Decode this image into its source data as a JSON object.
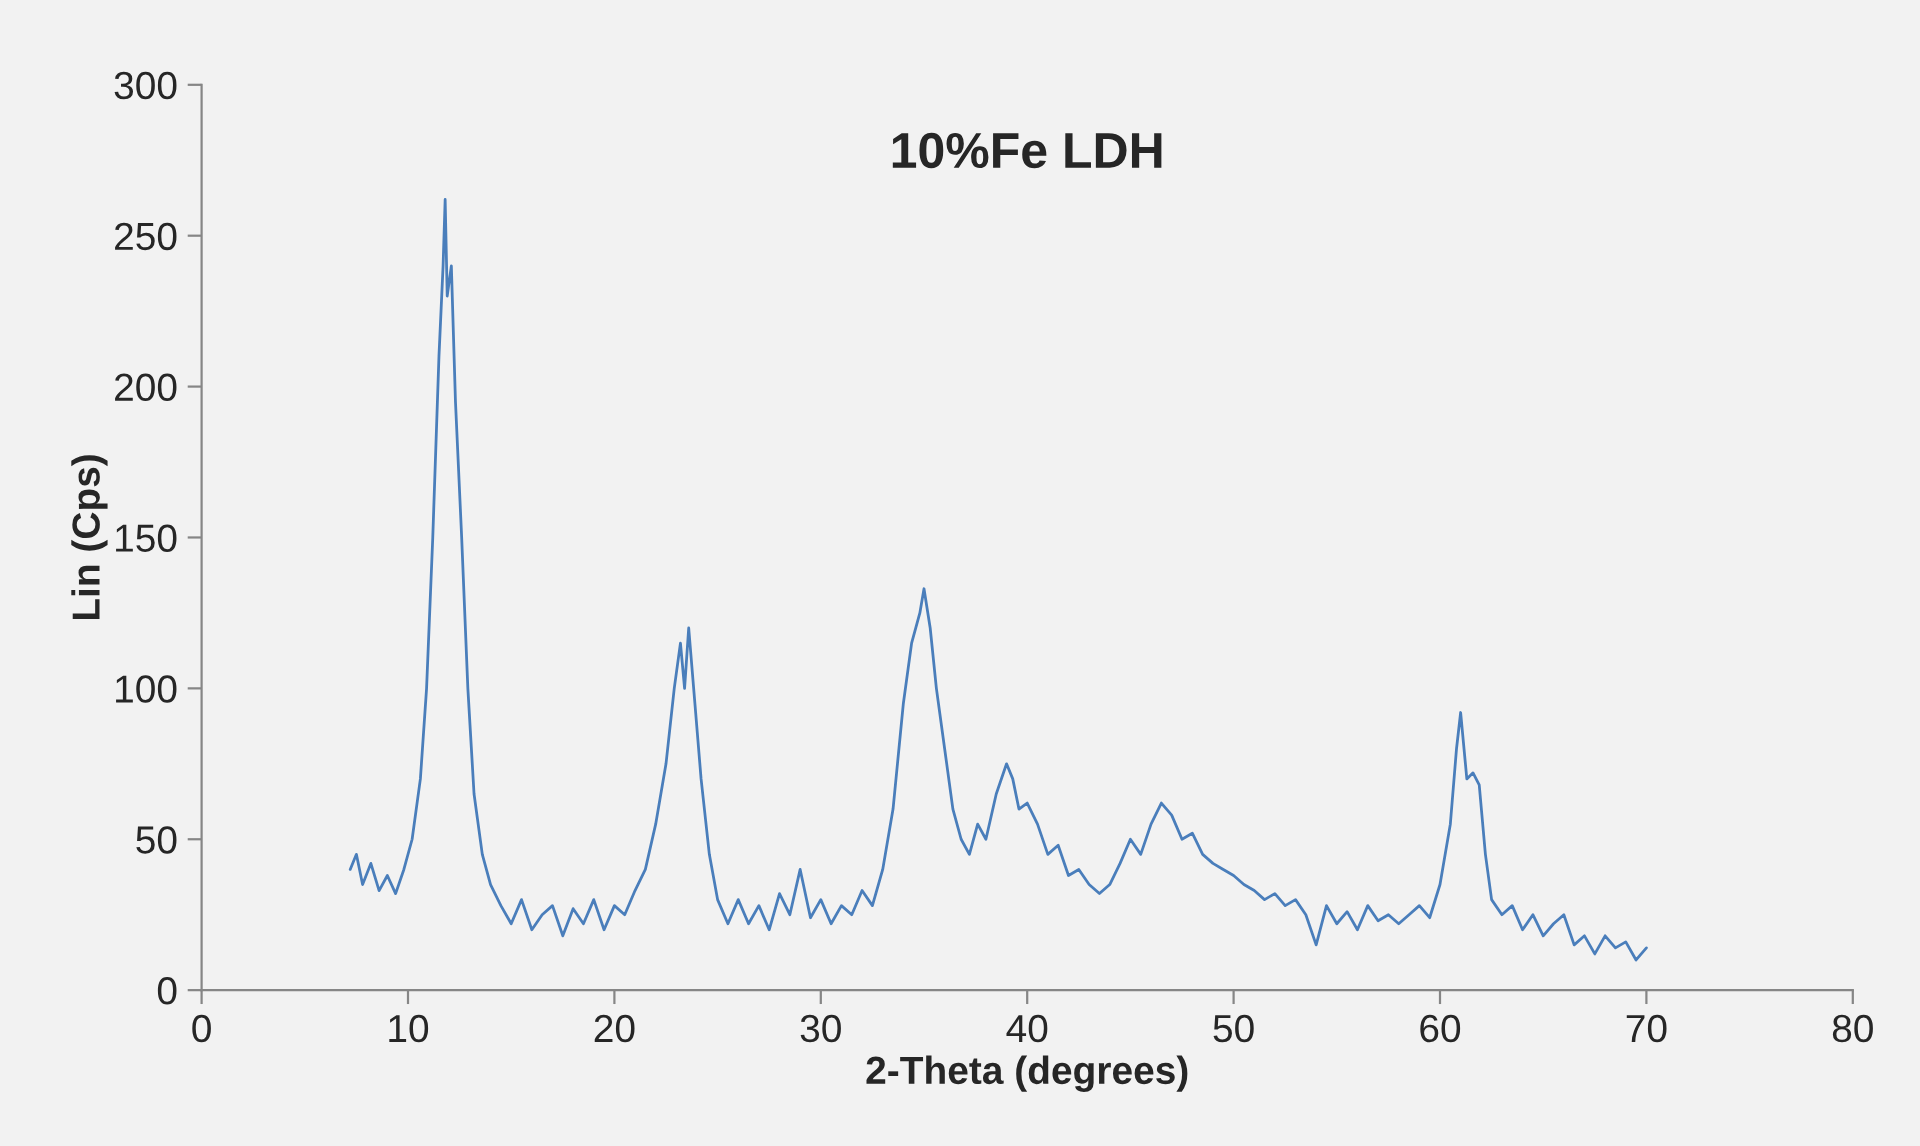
{
  "chart_data": {
    "type": "line",
    "title": "10%Fe LDH",
    "xlabel": "2-Theta (degrees)",
    "ylabel": "Lin (Cps)",
    "xlim": [
      0,
      80
    ],
    "xticks": [
      0,
      10,
      20,
      30,
      40,
      50,
      60,
      70,
      80
    ],
    "ylim": [
      0,
      300
    ],
    "yticks": [
      0,
      50,
      100,
      150,
      200,
      250,
      300
    ],
    "grid": false,
    "marker": "none",
    "line_style": "solid",
    "series": [
      {
        "color": "#4a7ebb",
        "x": [
          7.2,
          7.5,
          7.8,
          8.2,
          8.6,
          9.0,
          9.4,
          9.8,
          10.2,
          10.6,
          10.9,
          11.2,
          11.5,
          11.7,
          11.8,
          11.9,
          12.1,
          12.3,
          12.6,
          12.9,
          13.2,
          13.6,
          14.0,
          14.5,
          15.0,
          15.5,
          16.0,
          16.5,
          17.0,
          17.5,
          18.0,
          18.5,
          19.0,
          19.5,
          20.0,
          20.5,
          21.0,
          21.5,
          22.0,
          22.5,
          22.9,
          23.2,
          23.4,
          23.6,
          23.9,
          24.2,
          24.6,
          25.0,
          25.5,
          26.0,
          26.5,
          27.0,
          27.5,
          28.0,
          28.5,
          29.0,
          29.5,
          30.0,
          30.5,
          31.0,
          31.5,
          32.0,
          32.5,
          33.0,
          33.5,
          34.0,
          34.4,
          34.8,
          35.0,
          35.3,
          35.6,
          36.0,
          36.4,
          36.8,
          37.2,
          37.6,
          38.0,
          38.5,
          39.0,
          39.3,
          39.6,
          40.0,
          40.5,
          41.0,
          41.5,
          42.0,
          42.5,
          43.0,
          43.5,
          44.0,
          44.5,
          45.0,
          45.5,
          46.0,
          46.5,
          47.0,
          47.5,
          48.0,
          48.5,
          49.0,
          49.5,
          50.0,
          50.5,
          51.0,
          51.5,
          52.0,
          52.5,
          53.0,
          53.5,
          54.0,
          54.5,
          55.0,
          55.5,
          56.0,
          56.5,
          57.0,
          57.5,
          58.0,
          58.5,
          59.0,
          59.5,
          60.0,
          60.5,
          60.8,
          61.0,
          61.3,
          61.6,
          61.9,
          62.2,
          62.5,
          63.0,
          63.5,
          64.0,
          64.5,
          65.0,
          65.5,
          66.0,
          66.5,
          67.0,
          67.5,
          68.0,
          68.5,
          69.0,
          69.5,
          70.0
        ],
        "values": [
          40,
          45,
          35,
          42,
          33,
          38,
          32,
          40,
          50,
          70,
          100,
          150,
          210,
          240,
          262,
          230,
          240,
          195,
          150,
          100,
          65,
          45,
          35,
          28,
          22,
          30,
          20,
          25,
          28,
          18,
          27,
          22,
          30,
          20,
          28,
          25,
          33,
          40,
          55,
          75,
          100,
          115,
          100,
          120,
          95,
          70,
          45,
          30,
          22,
          30,
          22,
          28,
          20,
          32,
          25,
          40,
          24,
          30,
          22,
          28,
          25,
          33,
          28,
          40,
          60,
          95,
          115,
          125,
          133,
          120,
          100,
          80,
          60,
          50,
          45,
          55,
          50,
          65,
          75,
          70,
          60,
          62,
          55,
          45,
          48,
          38,
          40,
          35,
          32,
          35,
          42,
          50,
          45,
          55,
          62,
          58,
          50,
          52,
          45,
          42,
          40,
          38,
          35,
          33,
          30,
          32,
          28,
          30,
          25,
          15,
          28,
          22,
          26,
          20,
          28,
          23,
          25,
          22,
          25,
          28,
          24,
          35,
          55,
          80,
          92,
          70,
          72,
          68,
          45,
          30,
          25,
          28,
          20,
          25,
          18,
          22,
          25,
          15,
          18,
          12,
          18,
          14,
          16,
          10,
          14
        ]
      }
    ]
  }
}
